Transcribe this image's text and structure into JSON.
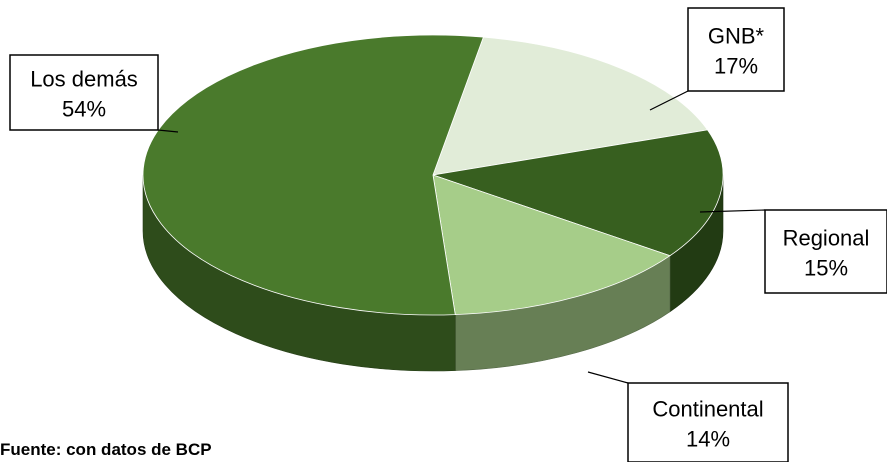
{
  "chart_data": {
    "type": "pie",
    "title": "",
    "slices": [
      {
        "label": "Los demás",
        "value": 54,
        "value_label": "54%",
        "color": "#4a7a2c"
      },
      {
        "label": "GNB*",
        "value": 17,
        "value_label": "17%",
        "color": "#e1ecd8"
      },
      {
        "label": "Regional",
        "value": 15,
        "value_label": "15%",
        "color": "#375f1f"
      },
      {
        "label": "Continental",
        "value": 14,
        "value_label": "14%",
        "color": "#a6cd89"
      }
    ],
    "style": "3d-exploded-free",
    "legend": "callouts"
  },
  "source_note": "Fuente: con datos de BCP"
}
